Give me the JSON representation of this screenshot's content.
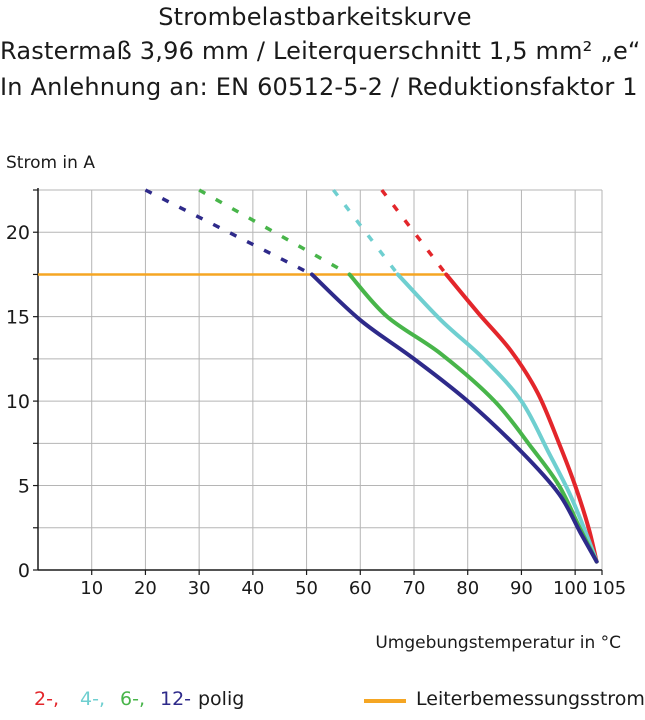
{
  "header": {
    "title": "Strombelastbarkeitskurve",
    "line2": "Rastermaß 3,96 mm / Leiterquerschnitt 1,5 mm² „e“",
    "line3": "In Anlehnung an: EN 60512-5-2 / Reduktionsfaktor 1"
  },
  "colors": {
    "grid": "#b5b5b5",
    "axis": "#1a1a1a",
    "rated": "#f5a623"
  },
  "chart_data": {
    "type": "line",
    "title": "Strombelastbarkeitskurve",
    "ylabel": "Strom in A",
    "xlabel": "Umgebungstemperatur in °C",
    "xlim": [
      0,
      105
    ],
    "ylim": [
      0,
      22.5
    ],
    "xticks": [
      10,
      20,
      30,
      40,
      50,
      60,
      70,
      80,
      90,
      100,
      105
    ],
    "yticks": [
      0,
      5,
      10,
      15,
      20
    ],
    "grid": true,
    "rated_current": {
      "name": "Leiterbemessungsstrom",
      "value": 17.5,
      "x_range": [
        0,
        76
      ],
      "color": "#f5a623"
    },
    "series": [
      {
        "name": "2-polig",
        "label": "2-,",
        "color": "#e3262b",
        "dashed": [
          [
            64,
            22.5
          ],
          [
            76,
            17.5
          ]
        ],
        "solid": [
          [
            76,
            17.5
          ],
          [
            82,
            15.2
          ],
          [
            88,
            13.0
          ],
          [
            93,
            10.5
          ],
          [
            97,
            7.5
          ],
          [
            100,
            5.0
          ],
          [
            102.5,
            2.5
          ],
          [
            104,
            0.5
          ]
        ]
      },
      {
        "name": "4-polig",
        "label": "4-,",
        "color": "#6fcfd0",
        "dashed": [
          [
            55,
            22.5
          ],
          [
            67,
            17.5
          ]
        ],
        "solid": [
          [
            67,
            17.5
          ],
          [
            75,
            14.8
          ],
          [
            83,
            12.5
          ],
          [
            90,
            10.0
          ],
          [
            95,
            7.0
          ],
          [
            99,
            4.5
          ],
          [
            102,
            2.2
          ],
          [
            104,
            0.5
          ]
        ]
      },
      {
        "name": "6-polig",
        "label": "6-,",
        "color": "#48b54a",
        "dashed": [
          [
            30,
            22.5
          ],
          [
            58,
            17.5
          ]
        ],
        "solid": [
          [
            58,
            17.5
          ],
          [
            65,
            15.0
          ],
          [
            75,
            12.8
          ],
          [
            85,
            10.0
          ],
          [
            92,
            7.2
          ],
          [
            97,
            5.0
          ],
          [
            101,
            2.4
          ],
          [
            104,
            0.5
          ]
        ]
      },
      {
        "name": "12-polig",
        "label": "12-",
        "color": "#2e2a8a",
        "dashed": [
          [
            20,
            22.5
          ],
          [
            51,
            17.5
          ]
        ],
        "solid": [
          [
            51,
            17.5
          ],
          [
            60,
            14.8
          ],
          [
            70,
            12.5
          ],
          [
            80,
            10.0
          ],
          [
            90,
            7.0
          ],
          [
            97,
            4.5
          ],
          [
            101,
            2.2
          ],
          [
            104,
            0.5
          ]
        ]
      }
    ]
  },
  "legend": {
    "suffix": "polig",
    "rated_label": "Leiterbemessungsstrom"
  }
}
